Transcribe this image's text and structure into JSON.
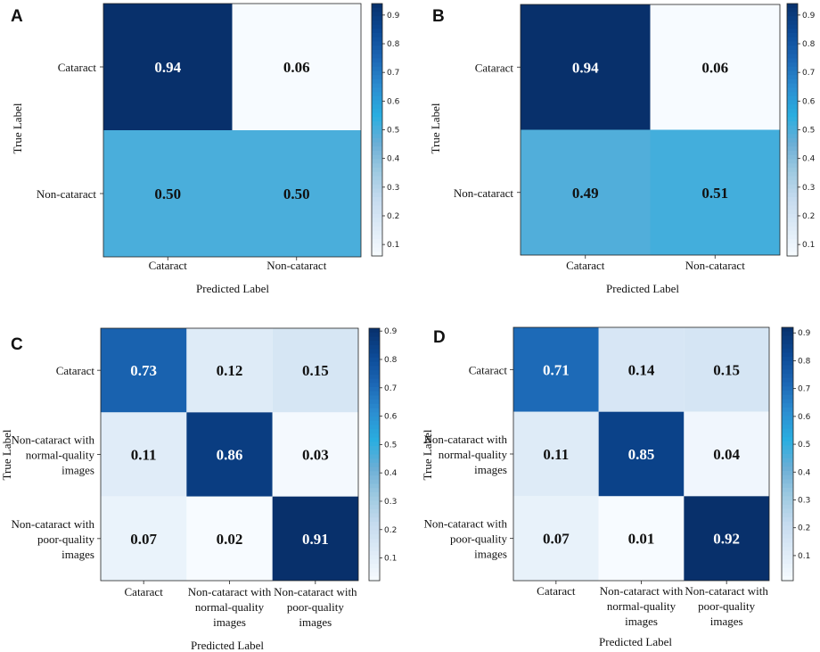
{
  "chart_data": [
    {
      "type": "heatmap",
      "panel_label": "A",
      "categories": [
        "Cataract",
        "Non-cataract"
      ],
      "matrix": [
        [
          0.94,
          0.06
        ],
        [
          0.5,
          0.5
        ]
      ],
      "matrix_labels": [
        [
          "0.94",
          "0.06"
        ],
        [
          "0.50",
          "0.50"
        ]
      ],
      "row_labels": [
        [
          "Cataract"
        ],
        [
          "Non-cataract"
        ]
      ],
      "col_labels": [
        [
          "Cataract"
        ],
        [
          "Non-cataract"
        ]
      ],
      "xlabel": "Predicted Label",
      "ylabel": "True Label",
      "colorbar": {
        "min": 0.06,
        "max": 0.94,
        "ticks": [
          "0.1",
          "0.2",
          "0.3",
          "0.4",
          "0.5",
          "0.6",
          "0.7",
          "0.8",
          "0.9"
        ]
      }
    },
    {
      "type": "heatmap",
      "panel_label": "B",
      "categories": [
        "Cataract",
        "Non-cataract"
      ],
      "matrix": [
        [
          0.94,
          0.06
        ],
        [
          0.49,
          0.51
        ]
      ],
      "matrix_labels": [
        [
          "0.94",
          "0.06"
        ],
        [
          "0.49",
          "0.51"
        ]
      ],
      "row_labels": [
        [
          "Cataract"
        ],
        [
          "Non-cataract"
        ]
      ],
      "col_labels": [
        [
          "Cataract"
        ],
        [
          "Non-cataract"
        ]
      ],
      "xlabel": "Predicted Label",
      "ylabel": "True Label",
      "colorbar": {
        "min": 0.06,
        "max": 0.94,
        "ticks": [
          "0.1",
          "0.2",
          "0.3",
          "0.4",
          "0.5",
          "0.6",
          "0.7",
          "0.8",
          "0.9"
        ]
      }
    },
    {
      "type": "heatmap",
      "panel_label": "C",
      "categories": [
        "Cataract",
        "Non-cataract with normal-quality images",
        "Non-cataract with poor-quality images"
      ],
      "matrix": [
        [
          0.73,
          0.12,
          0.15
        ],
        [
          0.11,
          0.86,
          0.03
        ],
        [
          0.07,
          0.02,
          0.91
        ]
      ],
      "matrix_labels": [
        [
          "0.73",
          "0.12",
          "0.15"
        ],
        [
          "0.11",
          "0.86",
          "0.03"
        ],
        [
          "0.07",
          "0.02",
          "0.91"
        ]
      ],
      "row_labels": [
        [
          "Cataract"
        ],
        [
          "Non-cataract with",
          "normal-quality",
          "images"
        ],
        [
          "Non-cataract with",
          "poor-quality",
          "images"
        ]
      ],
      "col_labels": [
        [
          "Cataract"
        ],
        [
          "Non-cataract with",
          "normal-quality",
          "images"
        ],
        [
          "Non-cataract with",
          "poor-quality",
          "images"
        ]
      ],
      "xlabel": "Predicted Label",
      "ylabel": "True Label",
      "colorbar": {
        "min": 0.02,
        "max": 0.91,
        "ticks": [
          "0.1",
          "0.2",
          "0.3",
          "0.4",
          "0.5",
          "0.6",
          "0.7",
          "0.8",
          "0.9"
        ]
      }
    },
    {
      "type": "heatmap",
      "panel_label": "D",
      "categories": [
        "Cataract",
        "Non-cataract with normal-quality images",
        "Non-cataract with poor-quality images"
      ],
      "matrix": [
        [
          0.71,
          0.14,
          0.15
        ],
        [
          0.11,
          0.85,
          0.04
        ],
        [
          0.07,
          0.01,
          0.92
        ]
      ],
      "matrix_labels": [
        [
          "0.71",
          "0.14",
          "0.15"
        ],
        [
          "0.11",
          "0.85",
          "0.04"
        ],
        [
          "0.07",
          "0.01",
          "0.92"
        ]
      ],
      "row_labels": [
        [
          "Cataract"
        ],
        [
          "Non-cataract with",
          "normal-quality",
          "images"
        ],
        [
          "Non-cataract with",
          "poor-quality",
          "images"
        ]
      ],
      "col_labels": [
        [
          "Cataract"
        ],
        [
          "Non-cataract with",
          "normal-quality",
          "images"
        ],
        [
          "Non-cataract with",
          "poor-quality",
          "images"
        ]
      ],
      "xlabel": "Predicted Label",
      "ylabel": "True Label",
      "colorbar": {
        "min": 0.01,
        "max": 0.92,
        "ticks": [
          "0.1",
          "0.2",
          "0.3",
          "0.4",
          "0.5",
          "0.6",
          "0.7",
          "0.8",
          "0.9"
        ]
      }
    }
  ],
  "colormap": [
    "#f7fbff",
    "#deebf7",
    "#c6dbef",
    "#9ecae1",
    "#6baed6",
    "#29aee0",
    "#2c8ed1",
    "#1c67b5",
    "#0c4a96",
    "#08306b"
  ]
}
